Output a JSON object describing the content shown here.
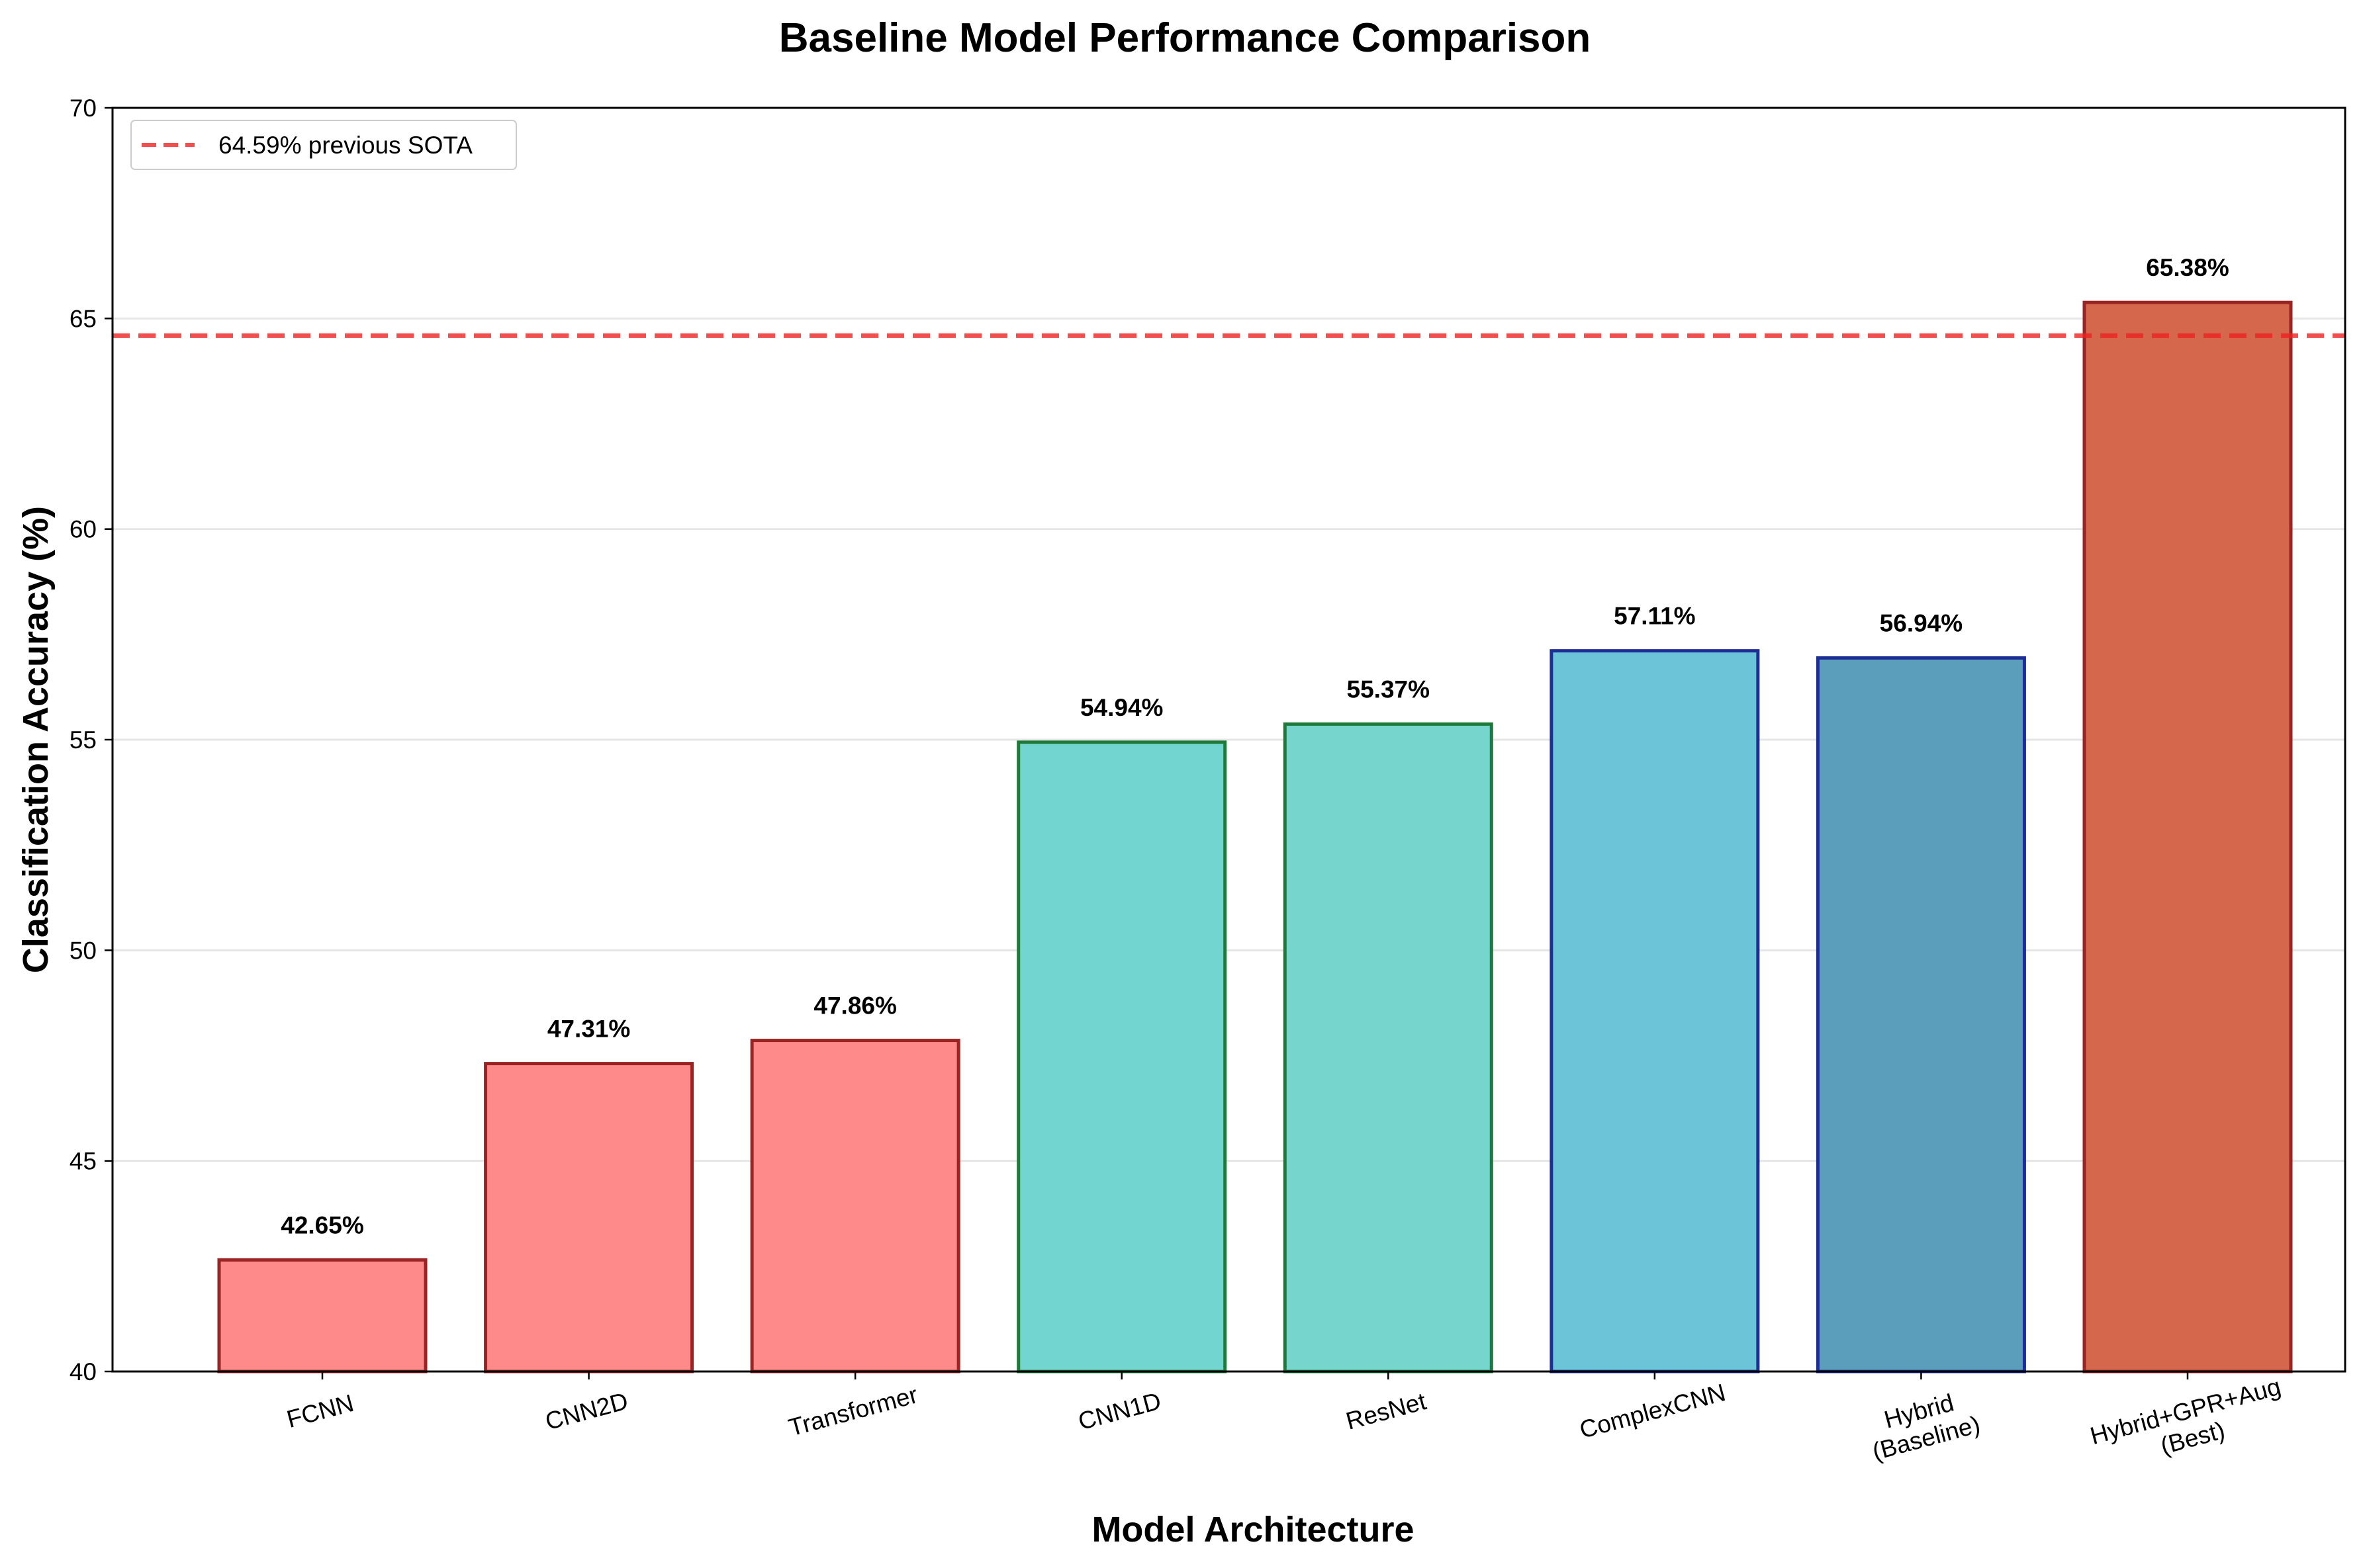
{
  "chart_data": {
    "type": "bar",
    "title": "Baseline Model Performance Comparison",
    "xlabel": "Model Architecture",
    "ylabel": "Classification Accuracy (%)",
    "ylim": [
      40,
      70
    ],
    "yticks": [
      40,
      45,
      50,
      55,
      60,
      65,
      70
    ],
    "categories": [
      [
        "FCNN"
      ],
      [
        "CNN2D"
      ],
      [
        "Transformer"
      ],
      [
        "CNN1D"
      ],
      [
        "ResNet"
      ],
      [
        "ComplexCNN"
      ],
      [
        "Hybrid",
        "(Baseline)"
      ],
      [
        "Hybrid+GPR+Aug",
        "(Best)"
      ]
    ],
    "values": [
      42.65,
      47.31,
      47.86,
      54.94,
      55.37,
      57.11,
      56.94,
      65.38
    ],
    "value_labels": [
      "42.65%",
      "47.31%",
      "47.86%",
      "54.94%",
      "55.37%",
      "57.11%",
      "56.94%",
      "65.38%"
    ],
    "bar_colors": [
      "#ff8a8a",
      "#ff8a8a",
      "#ff8a8a",
      "#73d5cf",
      "#76d6cd",
      "#6bc4d8",
      "#5a9ebc",
      "#d4674c"
    ],
    "edge_colors": [
      "#9a2424",
      "#9a2424",
      "#9a2424",
      "#1f7a3a",
      "#1f7a3a",
      "#1c2e94",
      "#1c2e94",
      "#9a2424"
    ],
    "reference_line": {
      "value": 64.59,
      "label": "64.59% previous SOTA",
      "color": "#ee2222"
    },
    "grid": "y",
    "legend_position": "top-left"
  }
}
